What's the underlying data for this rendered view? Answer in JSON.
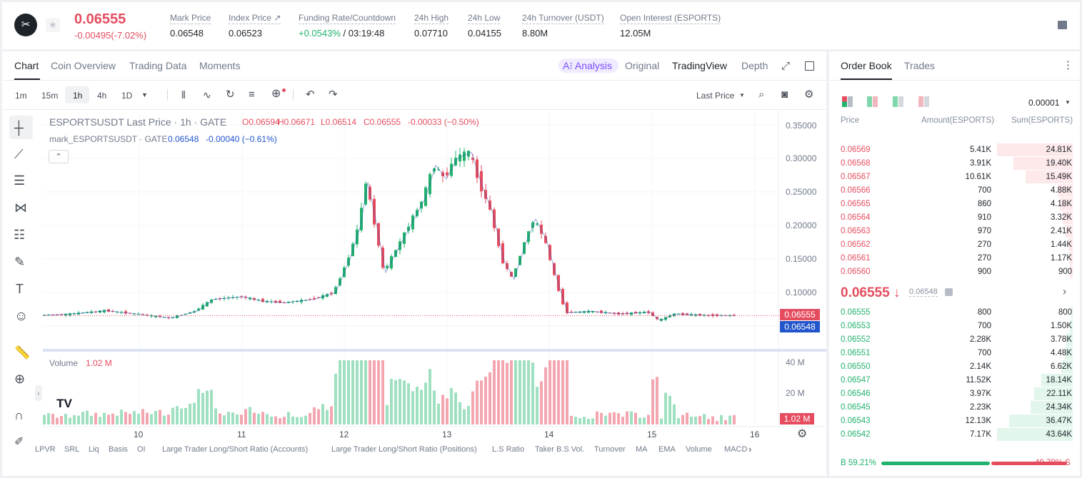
{
  "header": {
    "price": "0.06555",
    "change": "-0.00495(-7.02%)",
    "stats": [
      {
        "label": "Mark Price",
        "value": "0.06548"
      },
      {
        "label": "Index Price ↗",
        "value": "0.06523"
      },
      {
        "label": "Funding Rate/Countdown",
        "value": "+0.0543%",
        "value2": " / 03:19:48"
      },
      {
        "label": "24h High",
        "value": "0.07710"
      },
      {
        "label": "24h Low",
        "value": "0.04155"
      },
      {
        "label": "24h Turnover (USDT)",
        "value": "8.80M"
      },
      {
        "label": "Open Interest (ESPORTS)",
        "value": "12.05M"
      }
    ]
  },
  "chart_tabs": [
    "Chart",
    "Coin Overview",
    "Trading Data",
    "Moments"
  ],
  "view_tabs": {
    "analysis": "A⁝ Analysis",
    "original": "Original",
    "tradingview": "TradingView",
    "depth": "Depth"
  },
  "timeframes": [
    "1m",
    "15m",
    "1h",
    "4h",
    "1D"
  ],
  "price_type": "Last Price",
  "legend": {
    "symbol": "ESPORTSUSDT Last Price · 1h · GATE",
    "o": "O0.06594",
    "h": "H0.06671",
    "l": "L0.06514",
    "c": "C0.06555",
    "chg": "-0.00033 (−0.50%)",
    "mark": "mark_ESPORTSUSDT · GATE",
    "mark_val": "0.06548",
    "mark_chg": "-0.00040 (−0.61%)"
  },
  "volume": {
    "label": "Volume",
    "value": "1.02 M",
    "ticks": [
      "40 M",
      "20 M"
    ],
    "last": "1.02 M"
  },
  "last_price_label": "0.06555",
  "mark_price_label": "0.06548",
  "indicators": [
    "LPVR",
    "SRL",
    "Liq",
    "Basis",
    "OI",
    "Large Trader Long/Short Ratio (Accounts)",
    "Large Trader Long/Short Ratio (Positions)",
    "L.S Ratio",
    "Taker B.S Vol.",
    "Turnover",
    "MA",
    "EMA",
    "Volume",
    "MACD"
  ],
  "orderbook": {
    "tabs": [
      "Order Book",
      "Trades"
    ],
    "precision": "0.00001",
    "cols": [
      "Price",
      "Amount(ESPORTS)",
      "Sum(ESPORTS)"
    ],
    "asks": [
      [
        "0.06569",
        "5.41K",
        "24.81K"
      ],
      [
        "0.06568",
        "3.91K",
        "19.40K"
      ],
      [
        "0.06567",
        "10.61K",
        "15.49K"
      ],
      [
        "0.06566",
        "700",
        "4.88K"
      ],
      [
        "0.06565",
        "860",
        "4.18K"
      ],
      [
        "0.06564",
        "910",
        "3.32K"
      ],
      [
        "0.06563",
        "970",
        "2.41K"
      ],
      [
        "0.06562",
        "270",
        "1.44K"
      ],
      [
        "0.06561",
        "270",
        "1.17K"
      ],
      [
        "0.06560",
        "900",
        "900"
      ]
    ],
    "mid": "0.06555 ↓",
    "mid_mark": "0.06548",
    "bids": [
      [
        "0.06555",
        "800",
        "800"
      ],
      [
        "0.06553",
        "700",
        "1.50K"
      ],
      [
        "0.06552",
        "2.28K",
        "3.78K"
      ],
      [
        "0.06551",
        "700",
        "4.48K"
      ],
      [
        "0.06550",
        "2.14K",
        "6.62K"
      ],
      [
        "0.06547",
        "11.52K",
        "18.14K"
      ],
      [
        "0.06546",
        "3.97K",
        "22.11K"
      ],
      [
        "0.06545",
        "2.23K",
        "24.34K"
      ],
      [
        "0.06543",
        "12.13K",
        "36.47K"
      ],
      [
        "0.06542",
        "7.17K",
        "43.64K"
      ]
    ],
    "buy": "B 59.21%",
    "sell": "40.79% S",
    "buy_ratio": 0.5921
  },
  "chart_data": {
    "type": "candlestick",
    "series": "ESPORTSUSDT",
    "x": [
      "10",
      "11",
      "12",
      "13",
      "14",
      "15",
      "16"
    ],
    "y_ticks": [
      "0.35000",
      "0.30000",
      "0.25000",
      "0.20000",
      "0.15000",
      "0.10000"
    ],
    "ylim": [
      0.05,
      0.35
    ],
    "last": 0.06555,
    "mark": 0.06548
  }
}
